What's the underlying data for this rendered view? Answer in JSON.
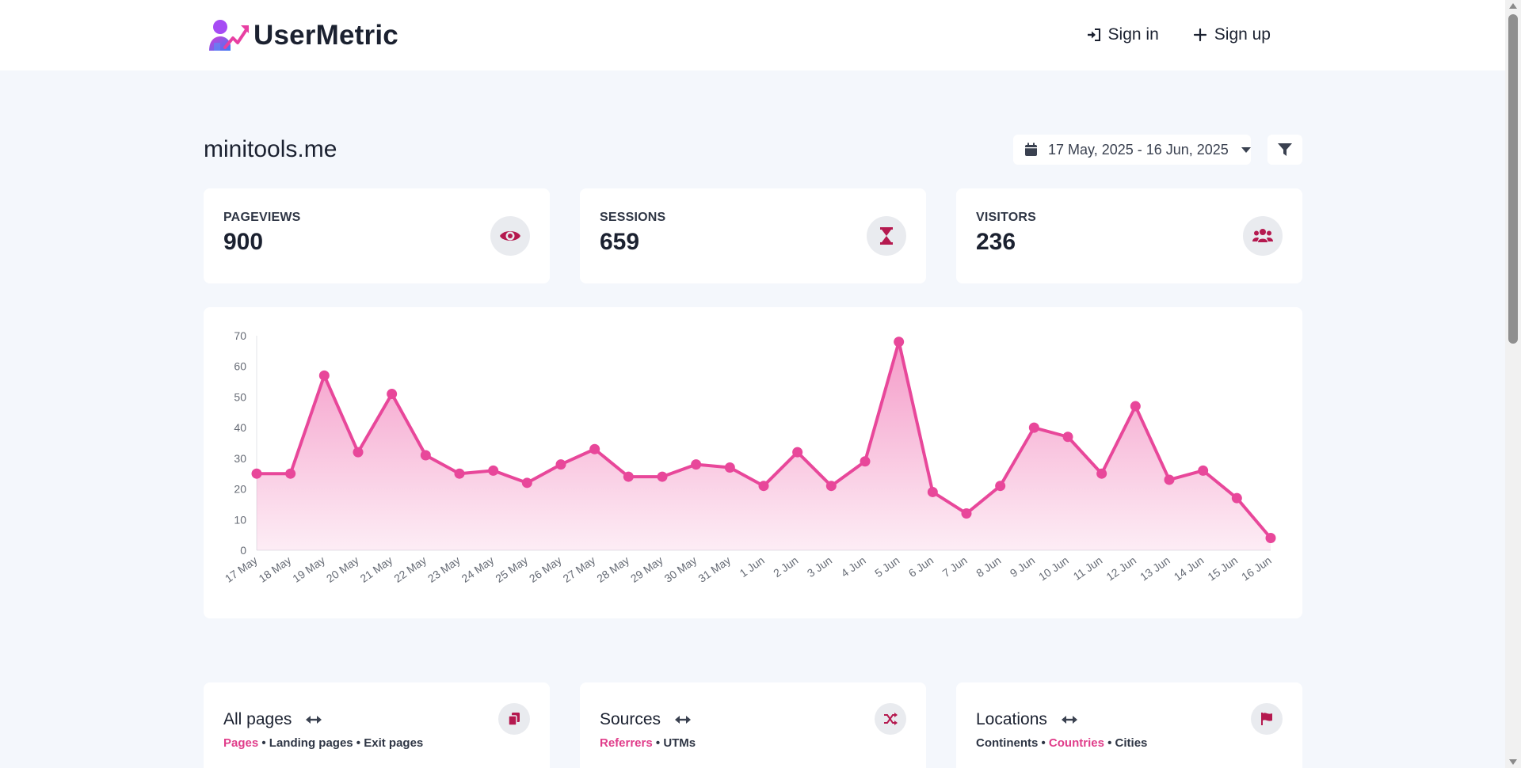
{
  "header": {
    "brand_name": "UserMetric",
    "nav": {
      "sign_in": "Sign in",
      "sign_up": "Sign up"
    }
  },
  "site": {
    "title": "minitools.me",
    "date_range": "17 May, 2025 - 16 Jun, 2025"
  },
  "stats": [
    {
      "label": "PAGEVIEWS",
      "value": "900",
      "icon": "eye-icon"
    },
    {
      "label": "SESSIONS",
      "value": "659",
      "icon": "hourglass-icon"
    },
    {
      "label": "VISITORS",
      "value": "236",
      "icon": "users-icon"
    }
  ],
  "colors": {
    "accent": "#e8479a",
    "icon_accent": "#b5194f",
    "background": "#f4f7fc"
  },
  "chart_data": {
    "type": "area",
    "x": [
      "17 May",
      "18 May",
      "19 May",
      "20 May",
      "21 May",
      "22 May",
      "23 May",
      "24 May",
      "25 May",
      "26 May",
      "27 May",
      "28 May",
      "29 May",
      "30 May",
      "31 May",
      "1 Jun",
      "2 Jun",
      "3 Jun",
      "4 Jun",
      "5 Jun",
      "6 Jun",
      "7 Jun",
      "8 Jun",
      "9 Jun",
      "10 Jun",
      "11 Jun",
      "12 Jun",
      "13 Jun",
      "14 Jun",
      "15 Jun",
      "16 Jun"
    ],
    "series": [
      {
        "values": [
          25,
          25,
          57,
          32,
          51,
          31,
          25,
          26,
          22,
          28,
          33,
          24,
          24,
          28,
          27,
          21,
          32,
          21,
          29,
          68,
          19,
          12,
          21,
          40,
          37,
          25,
          47,
          23,
          26,
          17,
          4
        ]
      }
    ],
    "yticks": [
      0,
      10,
      20,
      30,
      40,
      50,
      60,
      70
    ],
    "ylim": [
      0,
      70
    ],
    "grid": false
  },
  "panels": [
    {
      "title": "All pages",
      "tabs": [
        "Pages",
        "Landing pages",
        "Exit pages"
      ],
      "active": 0,
      "icon": "copy-icon"
    },
    {
      "title": "Sources",
      "tabs": [
        "Referrers",
        "UTMs"
      ],
      "active": 0,
      "icon": "shuffle-icon"
    },
    {
      "title": "Locations",
      "tabs": [
        "Continents",
        "Countries",
        "Cities"
      ],
      "active": 1,
      "icon": "flag-icon"
    }
  ]
}
